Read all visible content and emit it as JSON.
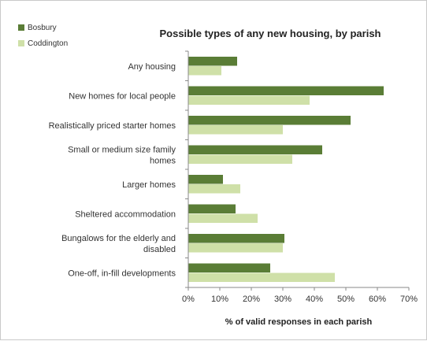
{
  "chart_data": {
    "type": "bar",
    "orientation": "horizontal",
    "title": "Possible types of any new housing, by parish",
    "xlabel": "% of valid responses in each parish",
    "ylabel": "",
    "xlim": [
      0,
      70
    ],
    "xticks": [
      "0%",
      "10%",
      "20%",
      "30%",
      "40%",
      "50%",
      "60%",
      "70%"
    ],
    "grid": false,
    "legend_position": "top-left",
    "categories": [
      [
        "Any housing"
      ],
      [
        "New homes for local people"
      ],
      [
        "Realistically priced starter homes"
      ],
      [
        "Small or medium size family",
        "homes"
      ],
      [
        "Larger homes"
      ],
      [
        "Sheltered accommodation"
      ],
      [
        "Bungalows for the elderly and",
        "disabled"
      ],
      [
        "One-off, in-fill developments"
      ]
    ],
    "series": [
      {
        "name": "Bosbury",
        "color": "#5a7d36",
        "values": [
          15.5,
          62,
          51.5,
          42.5,
          11,
          15,
          30.5,
          26
        ]
      },
      {
        "name": "Coddington",
        "color": "#cfe0a8",
        "values": [
          10.5,
          38.5,
          30,
          33,
          16.5,
          22,
          30,
          46.5
        ]
      }
    ]
  }
}
